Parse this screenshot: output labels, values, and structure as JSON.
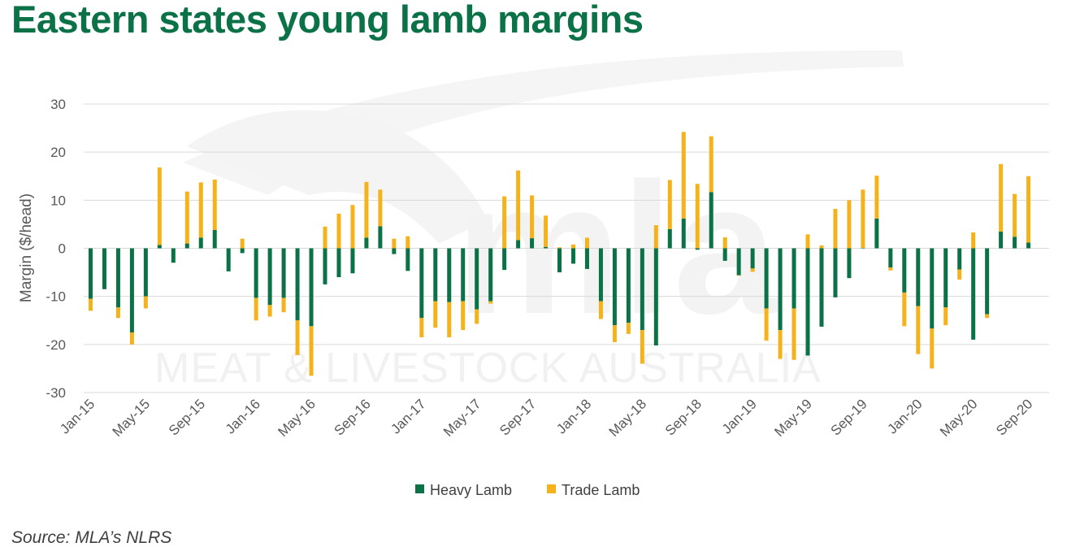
{
  "title": "Eastern states young lamb margins",
  "source": "Source: MLA’s NLRS",
  "watermark": {
    "logo": "mla",
    "text": "MEAT & LIVESTOCK AUSTRALIA"
  },
  "colors": {
    "title": "#0a7246",
    "heavy_lamb": "#0a7246",
    "trade_lamb": "#f6b21a",
    "grid": "#d9d9d9",
    "tick_text": "#595959"
  },
  "chart_data": {
    "type": "bar",
    "stacked": true,
    "ylabel": "Margin ($/head)",
    "ylim": [
      -30,
      30
    ],
    "yticks": [
      30,
      20,
      10,
      0,
      -10,
      -20,
      -30
    ],
    "grid": "horizontal",
    "legend_position": "bottom",
    "categories": [
      "Jan-15",
      "Feb-15",
      "Mar-15",
      "Apr-15",
      "May-15",
      "Jun-15",
      "Jul-15",
      "Aug-15",
      "Sep-15",
      "Oct-15",
      "Nov-15",
      "Dec-15",
      "Jan-16",
      "Feb-16",
      "Mar-16",
      "Apr-16",
      "May-16",
      "Jun-16",
      "Jul-16",
      "Aug-16",
      "Sep-16",
      "Oct-16",
      "Nov-16",
      "Dec-16",
      "Jan-17",
      "Feb-17",
      "Mar-17",
      "Apr-17",
      "May-17",
      "Jun-17",
      "Jul-17",
      "Aug-17",
      "Sep-17",
      "Oct-17",
      "Nov-17",
      "Dec-17",
      "Jan-18",
      "Feb-18",
      "Mar-18",
      "Apr-18",
      "May-18",
      "Jun-18",
      "Jul-18",
      "Aug-18",
      "Sep-18",
      "Oct-18",
      "Nov-18",
      "Dec-18",
      "Jan-19",
      "Feb-19",
      "Mar-19",
      "Apr-19",
      "May-19",
      "Jun-19",
      "Jul-19",
      "Aug-19",
      "Sep-19",
      "Oct-19",
      "Nov-19",
      "Dec-19",
      "Jan-20",
      "Feb-20",
      "Mar-20",
      "Apr-20",
      "May-20",
      "Jun-20",
      "Jul-20",
      "Aug-20",
      "Sep-20",
      "Oct-20"
    ],
    "x_tick_labels": [
      "Jan-15",
      "May-15",
      "Sep-15",
      "Jan-16",
      "May-16",
      "Sep-16",
      "Jan-17",
      "May-17",
      "Sep-17",
      "Jan-18",
      "May-18",
      "Sep-18",
      "Jan-19",
      "May-19",
      "Sep-19",
      "Jan-20",
      "May-20",
      "Sep-20"
    ],
    "x_tick_every": 4,
    "series": [
      {
        "name": "Heavy Lamb",
        "values": [
          -10.5,
          -8.5,
          -12.3,
          -17.5,
          -10,
          0.7,
          -3,
          1,
          2.2,
          3.8,
          -4.8,
          -1,
          -10.3,
          -11.8,
          -10.3,
          -15,
          -16.2,
          -7.5,
          -6,
          -5.2,
          2.2,
          4.6,
          -1.2,
          -4.7,
          -14.5,
          -11,
          -11.2,
          -11,
          -12.7,
          -11,
          -4.5,
          1.7,
          2.1,
          0.3,
          -5,
          -3.2,
          -4.3,
          -11,
          -16,
          -15.5,
          -17,
          -20.2,
          4,
          6.2,
          -0.3,
          11.7,
          -2.6,
          -5.6,
          -4.2,
          -12.5,
          -17,
          -12.5,
          -22.3,
          -16.3,
          -10.2,
          -6.2,
          0.1,
          6.2,
          -4,
          -9.2,
          -12,
          -16.7,
          -12.3,
          -4.4,
          -19,
          -13.7,
          3.5,
          2.4,
          1.2,
          0
        ],
        "stacked_totals": [
          -13,
          -8.5,
          -14.5,
          -20,
          -12.5,
          16.8,
          -3,
          11.8,
          13.7,
          14.3,
          -4.8,
          -1,
          -15,
          -14.2,
          -13.3,
          -22.2,
          -26.5,
          -7.5,
          -6,
          -5.2,
          13.8,
          12.2,
          -1.2,
          -4.7,
          -18.5,
          -16.5,
          -18.5,
          -17,
          -15.7,
          -11.5,
          -4.5,
          16.2,
          11,
          6.8,
          -5,
          -3.2,
          -4.3,
          -14.7,
          -19.5,
          -17.8,
          -24,
          -20.2,
          14.2,
          24.2,
          13.1,
          23.3,
          -2.6,
          -5.6,
          -4.9,
          -19.2,
          -23,
          -23.2,
          -22.3,
          -16.3,
          -10.2,
          -6.2,
          12.2,
          15.1,
          -4.6,
          -16.2,
          -22,
          -25,
          -16,
          -6.5,
          -19,
          -14.5,
          17.5,
          11.3,
          15,
          0
        ]
      },
      {
        "name": "Trade Lamb",
        "values": [
          -2.5,
          0,
          -2.2,
          -2.5,
          -2.5,
          16.1,
          0,
          10.8,
          11.5,
          10.5,
          0,
          2,
          -4.7,
          -2.4,
          -3,
          -7.2,
          -10.3,
          4.5,
          7.2,
          9,
          11.6,
          7.6,
          2,
          2.5,
          -4,
          -5.5,
          -7.3,
          -6,
          -3,
          -0.5,
          10.8,
          14.5,
          8.9,
          6.5,
          0.2,
          0.8,
          2.2,
          -3.7,
          -3.5,
          -2.3,
          -7,
          4.8,
          10.2,
          18,
          13.4,
          11.6,
          2.3,
          -0.1,
          -0.7,
          -6.7,
          -6,
          -10.7,
          2.9,
          0.6,
          8.2,
          10,
          12.1,
          8.9,
          -0.6,
          -7,
          -10,
          -8.3,
          -3.7,
          -2.1,
          3.3,
          -0.8,
          14,
          8.9,
          13.8,
          0
        ]
      }
    ]
  },
  "legend": [
    {
      "label": "Heavy Lamb",
      "color": "#0a7246"
    },
    {
      "label": "Trade Lamb",
      "color": "#f6b21a"
    }
  ]
}
